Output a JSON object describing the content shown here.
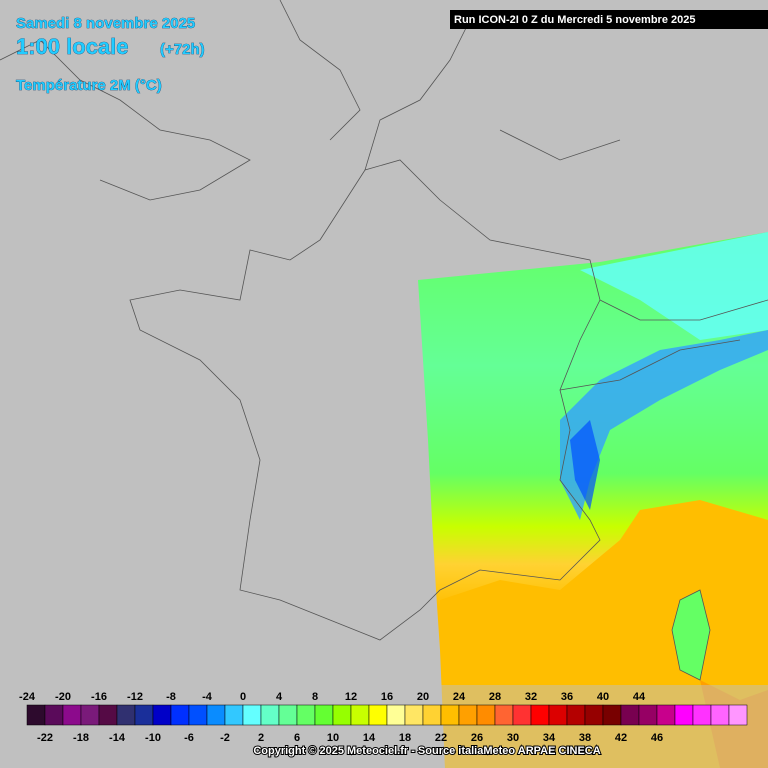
{
  "header": {
    "date": "Samedi 8 novembre 2025",
    "time": "1:00 locale",
    "offset": "(+72h)",
    "variable": "Température 2M (°C)"
  },
  "run": "Run ICON-2I 0 Z du Mercredi 5 novembre 2025",
  "legend": {
    "ticks": [
      -24,
      -22,
      -20,
      -18,
      -16,
      -14,
      -12,
      -10,
      -8,
      -6,
      -4,
      -2,
      0,
      2,
      4,
      6,
      8,
      10,
      12,
      14,
      16,
      18,
      20,
      22,
      24,
      26,
      28,
      30,
      32,
      34,
      36,
      38,
      40,
      42,
      44,
      46
    ],
    "colors": [
      "#2d0a2d",
      "#5a0a5a",
      "#8c0a8c",
      "#7a1a7a",
      "#550a45",
      "#303070",
      "#1a2f9a",
      "#0000c8",
      "#0030ff",
      "#0050ff",
      "#0a8cff",
      "#32c8ff",
      "#64ffff",
      "#64ffc8",
      "#64ff96",
      "#64ff64",
      "#64ff32",
      "#96ff00",
      "#c8ff00",
      "#ffff00",
      "#ffff96",
      "#ffe664",
      "#ffd232",
      "#ffbe00",
      "#ffa000",
      "#ff8c00",
      "#ff6432",
      "#ff3232",
      "#ff0000",
      "#dc0000",
      "#b40000",
      "#960000",
      "#780000",
      "#780050",
      "#960064",
      "#c8008c",
      "#ff00ff",
      "#ff32ff",
      "#ff64ff",
      "#ff96ff"
    ]
  },
  "copyright": "Copyright © 2025 Meteociel.fr - Source italiaMeteo ARPAE CINECA"
}
